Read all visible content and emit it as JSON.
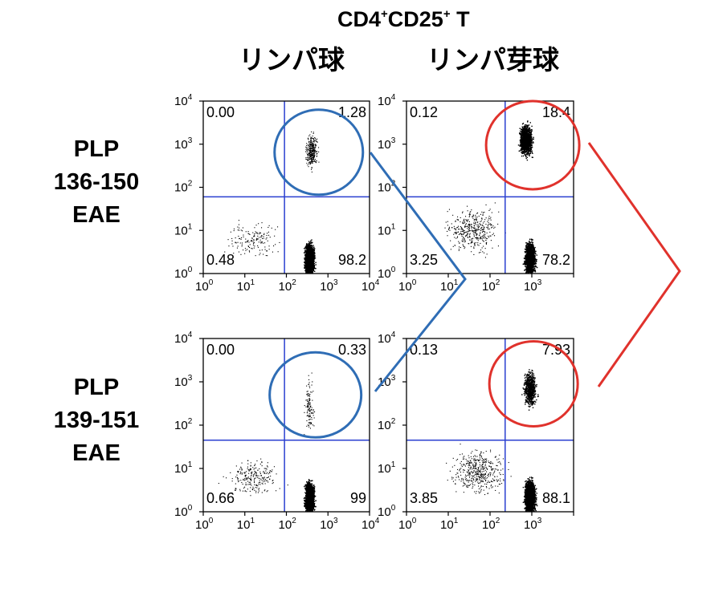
{
  "header": {
    "title_cd4": "CD4",
    "title_plus1": "+",
    "title_cd25": "CD25",
    "title_plus2": "+",
    "title_t": " T",
    "col1": "リンパ球",
    "col2": "リンパ芽球"
  },
  "rows": [
    {
      "line1": "PLP",
      "line2": "136-150",
      "line3": "EAE"
    },
    {
      "line1": "PLP",
      "line2": "139-151",
      "line3": "EAE"
    }
  ],
  "chart_data": [
    {
      "type": "scatter",
      "row": "PLP 136-150 EAE",
      "column": "リンパ球",
      "scale": "log",
      "xlim": [
        1,
        10000
      ],
      "ylim": [
        1,
        10000
      ],
      "quadrant_values": {
        "top_left": "0.00",
        "top_right": "1.28",
        "bottom_left": "0.48",
        "bottom_right": "98.2"
      },
      "highlight_color": "#2f6db5",
      "gate_color": "#2a3fd0"
    },
    {
      "type": "scatter",
      "row": "PLP 136-150 EAE",
      "column": "リンパ芽球",
      "scale": "log",
      "xlim": [
        1,
        10000
      ],
      "ylim": [
        1,
        10000
      ],
      "quadrant_values": {
        "top_left": "0.12",
        "top_right": "18.4",
        "bottom_left": "3.25",
        "bottom_right": "78.2"
      },
      "highlight_color": "#e0322c",
      "gate_color": "#2a3fd0"
    },
    {
      "type": "scatter",
      "row": "PLP 139-151 EAE",
      "column": "リンパ球",
      "scale": "log",
      "xlim": [
        1,
        10000
      ],
      "ylim": [
        1,
        10000
      ],
      "quadrant_values": {
        "top_left": "0.00",
        "top_right": "0.33",
        "bottom_left": "0.66",
        "bottom_right": "99"
      },
      "highlight_color": "#2f6db5",
      "gate_color": "#2a3fd0"
    },
    {
      "type": "scatter",
      "row": "PLP 139-151 EAE",
      "column": "リンパ芽球",
      "scale": "log",
      "xlim": [
        1,
        10000
      ],
      "ylim": [
        1,
        10000
      ],
      "quadrant_values": {
        "top_left": "0.13",
        "top_right": "7.93",
        "bottom_left": "3.85",
        "bottom_right": "88.1"
      },
      "highlight_color": "#e0322c",
      "gate_color": "#2a3fd0"
    }
  ],
  "tick_labels": {
    "base": "10",
    "exponents": [
      "0",
      "1",
      "2",
      "3",
      "4"
    ]
  }
}
